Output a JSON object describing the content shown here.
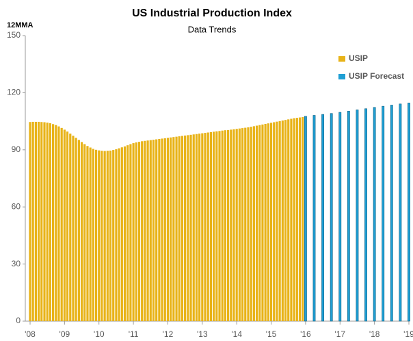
{
  "chart_data": {
    "type": "bar",
    "title": "US Industrial Production Index",
    "subtitle": "Data Trends",
    "y_label": "12MMA",
    "xlim": [
      2008,
      2019
    ],
    "xticks": [
      {
        "value": 2008,
        "label": "'08"
      },
      {
        "value": 2009,
        "label": "'09"
      },
      {
        "value": 2010,
        "label": "'10"
      },
      {
        "value": 2011,
        "label": "'11"
      },
      {
        "value": 2012,
        "label": "'12"
      },
      {
        "value": 2013,
        "label": "'13"
      },
      {
        "value": 2014,
        "label": "'14"
      },
      {
        "value": 2015,
        "label": "'15"
      },
      {
        "value": 2016,
        "label": "'16"
      },
      {
        "value": 2017,
        "label": "'17"
      },
      {
        "value": 2018,
        "label": "'18"
      },
      {
        "value": 2019,
        "label": "'19"
      }
    ],
    "ylim": [
      0,
      150
    ],
    "yticks": [
      0,
      30,
      60,
      90,
      120,
      150
    ],
    "grid": false,
    "legend": "top-right",
    "series": [
      {
        "name": "USIP",
        "color": "#e8b318",
        "x": [
          2008,
          2008.083,
          2008.167,
          2008.25,
          2008.333,
          2008.417,
          2008.5,
          2008.583,
          2008.667,
          2008.75,
          2008.833,
          2008.917,
          2009,
          2009.083,
          2009.167,
          2009.25,
          2009.333,
          2009.417,
          2009.5,
          2009.583,
          2009.667,
          2009.75,
          2009.833,
          2009.917,
          2010,
          2010.083,
          2010.167,
          2010.25,
          2010.333,
          2010.417,
          2010.5,
          2010.583,
          2010.667,
          2010.75,
          2010.833,
          2010.917,
          2011,
          2011.083,
          2011.167,
          2011.25,
          2011.333,
          2011.417,
          2011.5,
          2011.583,
          2011.667,
          2011.75,
          2011.833,
          2011.917,
          2012,
          2012.083,
          2012.167,
          2012.25,
          2012.333,
          2012.417,
          2012.5,
          2012.583,
          2012.667,
          2012.75,
          2012.833,
          2012.917,
          2013,
          2013.083,
          2013.167,
          2013.25,
          2013.333,
          2013.417,
          2013.5,
          2013.583,
          2013.667,
          2013.75,
          2013.833,
          2013.917,
          2014,
          2014.083,
          2014.167,
          2014.25,
          2014.333,
          2014.417,
          2014.5,
          2014.583,
          2014.667,
          2014.75,
          2014.833,
          2014.917,
          2015,
          2015.083,
          2015.167,
          2015.25,
          2015.333,
          2015.417,
          2015.5,
          2015.583,
          2015.667,
          2015.75,
          2015.833,
          2015.917
        ],
        "values": [
          104.6,
          104.7,
          104.7,
          104.7,
          104.6,
          104.5,
          104.3,
          104.0,
          103.5,
          103.0,
          102.3,
          101.5,
          100.6,
          99.6,
          98.5,
          97.4,
          96.3,
          95.2,
          94.1,
          93.0,
          92.0,
          91.2,
          90.5,
          90.0,
          89.7,
          89.5,
          89.4,
          89.5,
          89.6,
          89.9,
          90.3,
          90.8,
          91.3,
          91.8,
          92.4,
          93.0,
          93.5,
          93.9,
          94.2,
          94.5,
          94.7,
          94.9,
          95.1,
          95.3,
          95.5,
          95.7,
          95.9,
          96.1,
          96.3,
          96.5,
          96.7,
          96.9,
          97.1,
          97.3,
          97.5,
          97.7,
          97.9,
          98.1,
          98.3,
          98.5,
          98.7,
          98.9,
          99.1,
          99.3,
          99.5,
          99.7,
          99.9,
          100.1,
          100.3,
          100.4,
          100.6,
          100.8,
          101.0,
          101.2,
          101.4,
          101.6,
          101.8,
          102.1,
          102.4,
          102.7,
          103.0,
          103.3,
          103.6,
          103.9,
          104.2,
          104.5,
          104.8,
          105.1,
          105.4,
          105.7,
          106.0,
          106.3,
          106.6,
          106.8,
          107.0,
          107.2
        ]
      },
      {
        "name": "USIP Forecast",
        "color": "#1f9fd4",
        "x": [
          2016,
          2016.25,
          2016.5,
          2016.75,
          2017,
          2017.25,
          2017.5,
          2017.75,
          2018,
          2018.25,
          2018.5,
          2018.75,
          2019
        ],
        "values": [
          107.6,
          108.1,
          108.6,
          109.1,
          109.7,
          110.3,
          111.0,
          111.6,
          112.3,
          112.9,
          113.5,
          114.1,
          114.6
        ]
      }
    ]
  }
}
